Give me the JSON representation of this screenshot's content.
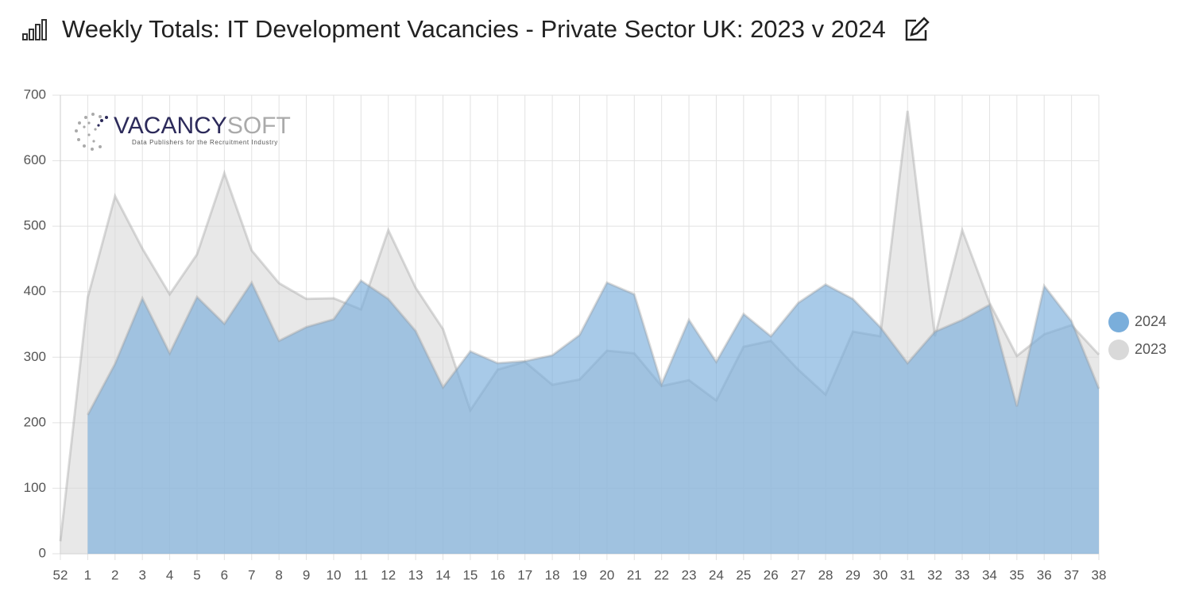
{
  "chart_data": {
    "type": "area",
    "title": "Weekly Totals: IT Development Vacancies - Private Sector UK: 2023 v 2024",
    "categories": [
      "52",
      "1",
      "2",
      "3",
      "4",
      "5",
      "6",
      "7",
      "8",
      "9",
      "10",
      "11",
      "12",
      "13",
      "14",
      "15",
      "16",
      "17",
      "18",
      "19",
      "20",
      "21",
      "22",
      "23",
      "24",
      "25",
      "26",
      "27",
      "28",
      "29",
      "30",
      "31",
      "32",
      "33",
      "34",
      "35",
      "36",
      "37",
      "38"
    ],
    "series": [
      {
        "name": "2024",
        "color": "#7aaedb",
        "values": [
          null,
          212,
          290,
          390,
          306,
          392,
          351,
          414,
          325,
          346,
          358,
          417,
          389,
          340,
          254,
          309,
          291,
          294,
          303,
          334,
          414,
          396,
          259,
          357,
          293,
          366,
          332,
          383,
          411,
          389,
          346,
          291,
          339,
          357,
          380,
          225,
          409,
          355,
          252
        ]
      },
      {
        "name": "2023",
        "color": "#d9d9d9",
        "values": [
          19,
          391,
          546,
          466,
          396,
          457,
          581,
          463,
          413,
          389,
          390,
          373,
          494,
          406,
          343,
          219,
          281,
          293,
          258,
          266,
          310,
          306,
          256,
          265,
          234,
          316,
          325,
          281,
          243,
          339,
          332,
          676,
          332,
          494,
          383,
          302,
          335,
          349,
          304
        ]
      }
    ],
    "ylim": [
      0,
      700
    ],
    "yticks": [
      0,
      100,
      200,
      300,
      400,
      500,
      600,
      700
    ],
    "grid": true,
    "legend": "right"
  },
  "logo": {
    "name_main": "VACANCY",
    "name_accent": "SOFT",
    "tagline": "Data Publishers for the Recruitment Industry"
  }
}
